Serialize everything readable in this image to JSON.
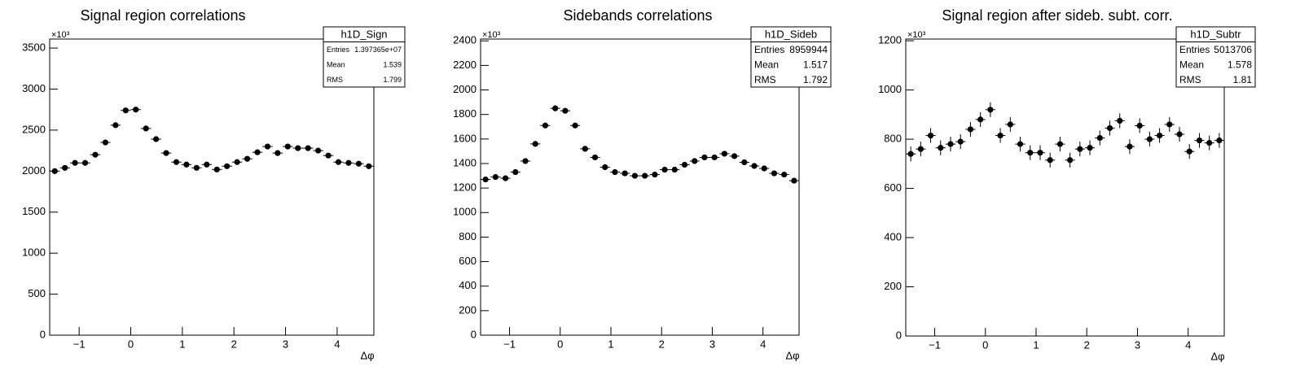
{
  "chart_data": [
    {
      "type": "histogram",
      "title": "Signal region correlations",
      "x_label": "Δφ",
      "y_multiplier": "×10³",
      "bins": [
        -1.571,
        -1.374,
        -1.178,
        -0.982,
        -0.785,
        -0.589,
        -0.393,
        -0.196,
        0,
        0.196,
        0.393,
        0.589,
        0.785,
        0.982,
        1.178,
        1.374,
        1.571,
        1.767,
        1.963,
        2.16,
        2.356,
        2.553,
        2.749,
        2.945,
        3.142,
        3.338,
        3.534,
        3.731,
        3.927,
        4.123,
        4.32,
        4.516,
        4.712
      ],
      "values": [
        2000,
        2040,
        2100,
        2100,
        2200,
        2350,
        2560,
        2740,
        2750,
        2520,
        2390,
        2220,
        2110,
        2080,
        2040,
        2080,
        2020,
        2060,
        2110,
        2150,
        2230,
        2300,
        2220,
        2300,
        2280,
        2280,
        2250,
        2190,
        2110,
        2100,
        2090,
        2060
      ],
      "color": "#000000",
      "xlim": [
        -1.571,
        4.712
      ],
      "xticks": [
        {
          "value": -1,
          "label": "−1"
        },
        0,
        1,
        2,
        3,
        4
      ],
      "ylim": [
        0,
        3610
      ],
      "yticks": [
        0,
        500,
        1000,
        1500,
        2000,
        2500,
        3000,
        3500
      ],
      "stats": {
        "name": "h1D_Sign",
        "rows": [
          [
            "Entries",
            "1.397365e+07"
          ],
          [
            "Mean",
            "1.539"
          ],
          [
            "RMS",
            "1.799"
          ]
        ]
      }
    },
    {
      "type": "histogram",
      "title": "Sidebands correlations",
      "x_label": "Δφ",
      "y_multiplier": "×10³",
      "bins": [
        -1.571,
        -1.374,
        -1.178,
        -0.982,
        -0.785,
        -0.589,
        -0.393,
        -0.196,
        0,
        0.196,
        0.393,
        0.589,
        0.785,
        0.982,
        1.178,
        1.374,
        1.571,
        1.767,
        1.963,
        2.16,
        2.356,
        2.553,
        2.749,
        2.945,
        3.142,
        3.338,
        3.534,
        3.731,
        3.927,
        4.123,
        4.32,
        4.516,
        4.712
      ],
      "values": [
        1270,
        1290,
        1280,
        1330,
        1420,
        1560,
        1710,
        1850,
        1830,
        1710,
        1520,
        1450,
        1370,
        1330,
        1320,
        1300,
        1300,
        1310,
        1350,
        1350,
        1390,
        1420,
        1450,
        1450,
        1480,
        1460,
        1410,
        1380,
        1360,
        1320,
        1310,
        1260
      ],
      "color": "#000000",
      "xlim": [
        -1.571,
        4.712
      ],
      "xticks": [
        {
          "value": -1,
          "label": "−1"
        },
        0,
        1,
        2,
        3,
        4
      ],
      "ylim": [
        0,
        2415
      ],
      "yticks": [
        0,
        200,
        400,
        600,
        800,
        1000,
        1200,
        1400,
        1600,
        1800,
        2000,
        2200,
        2400
      ],
      "stats": {
        "name": "h1D_Sideb",
        "rows": [
          [
            "Entries",
            "8959944"
          ],
          [
            "Mean",
            "1.517"
          ],
          [
            "RMS",
            "1.792"
          ]
        ]
      }
    },
    {
      "type": "histogram",
      "title": "Signal region after sideb. subt. corr.",
      "x_label": "Δφ",
      "y_multiplier": "×10³",
      "bins": [
        -1.571,
        -1.374,
        -1.178,
        -0.982,
        -0.785,
        -0.589,
        -0.393,
        -0.196,
        0,
        0.196,
        0.393,
        0.589,
        0.785,
        0.982,
        1.178,
        1.374,
        1.571,
        1.767,
        1.963,
        2.16,
        2.356,
        2.553,
        2.749,
        2.945,
        3.142,
        3.338,
        3.534,
        3.731,
        3.927,
        4.123,
        4.32,
        4.516,
        4.712
      ],
      "values": [
        740,
        760,
        815,
        765,
        780,
        790,
        840,
        880,
        920,
        815,
        860,
        780,
        745,
        745,
        715,
        780,
        715,
        760,
        765,
        805,
        845,
        875,
        770,
        855,
        800,
        815,
        860,
        820,
        750,
        795,
        785,
        795
      ],
      "errors": [
        30,
        30,
        30,
        30,
        30,
        30,
        30,
        30,
        30,
        30,
        30,
        30,
        30,
        30,
        30,
        30,
        30,
        30,
        30,
        30,
        30,
        30,
        30,
        30,
        30,
        30,
        30,
        30,
        30,
        30,
        30,
        30
      ],
      "color": "#000000",
      "xlim": [
        -1.571,
        4.712
      ],
      "xticks": [
        {
          "value": -1,
          "label": "−1"
        },
        0,
        1,
        2,
        3,
        4
      ],
      "ylim": [
        0,
        1207
      ],
      "yticks": [
        0,
        200,
        400,
        600,
        800,
        1000,
        1200
      ],
      "stats": {
        "name": "h1D_Subtr",
        "rows": [
          [
            "Entries",
            "5013706"
          ],
          [
            "Mean",
            "1.578"
          ],
          [
            "RMS",
            "1.81"
          ]
        ]
      }
    }
  ]
}
